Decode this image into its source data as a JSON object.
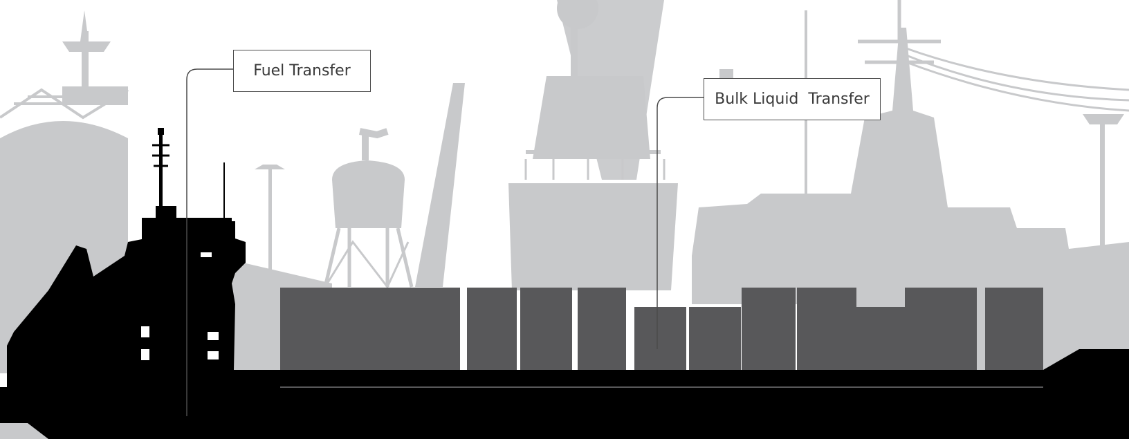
{
  "callouts": {
    "fuel_transfer": "Fuel Transfer",
    "bulk_liquid_transfer": "Bulk Liquid  Transfer"
  },
  "colors": {
    "background": "#ffffff",
    "silhouette_background": "#c8c9cb",
    "cargo_containers": "#58585a",
    "ship_hull": "#000000",
    "callout_border": "#4a4a4a",
    "callout_text": "#3a3a3a"
  }
}
